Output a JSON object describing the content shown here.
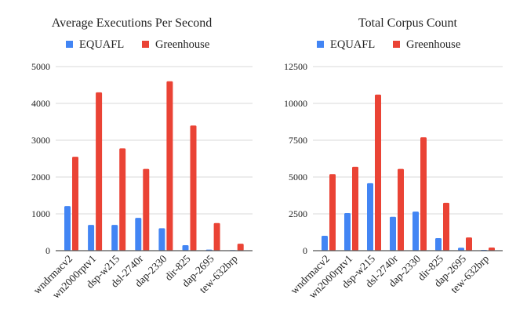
{
  "chart_data": [
    {
      "type": "bar",
      "title": "Average Executions Per Second",
      "xlabel": "",
      "ylabel": "",
      "categories": [
        "wndrmacv2",
        "wn2000rptv1",
        "dsp-w215",
        "dsl-2740r",
        "dap-2330",
        "dir-825",
        "dap-2695",
        "tew-632brp"
      ],
      "series": [
        {
          "name": "EQUAFL",
          "color": "#4285F4",
          "values": [
            1210,
            700,
            700,
            890,
            610,
            150,
            30,
            5
          ]
        },
        {
          "name": "Greenhouse",
          "color": "#EA4335",
          "values": [
            2550,
            4300,
            2780,
            2220,
            4600,
            3400,
            750,
            190
          ]
        }
      ],
      "ylim": [
        0,
        5000
      ],
      "yticks": [
        0,
        1000,
        2000,
        3000,
        4000,
        5000
      ],
      "ytick_labels": [
        "0",
        "1000",
        "2000",
        "3000",
        "4000",
        "5000"
      ],
      "grid": true,
      "legend_position": "top-center"
    },
    {
      "type": "bar",
      "title": "Total Corpus Count",
      "xlabel": "",
      "ylabel": "",
      "categories": [
        "wndrmacv2",
        "wn2000rptv1",
        "dsp-w215",
        "dsl-2740r",
        "dap-2330",
        "dir-825",
        "dap-2695",
        "tew-632brp"
      ],
      "series": [
        {
          "name": "EQUAFL",
          "color": "#4285F4",
          "values": [
            1010,
            2550,
            4580,
            2300,
            2650,
            850,
            200,
            50
          ]
        },
        {
          "name": "Greenhouse",
          "color": "#EA4335",
          "values": [
            5200,
            5700,
            10600,
            5550,
            7700,
            3250,
            900,
            210
          ]
        }
      ],
      "ylim": [
        0,
        12500
      ],
      "yticks": [
        0,
        2500,
        5000,
        7500,
        10000,
        12500
      ],
      "ytick_labels": [
        "0",
        "2500",
        "5000",
        "7500",
        "10000",
        "12500"
      ],
      "grid": true,
      "legend_position": "top-center"
    }
  ]
}
